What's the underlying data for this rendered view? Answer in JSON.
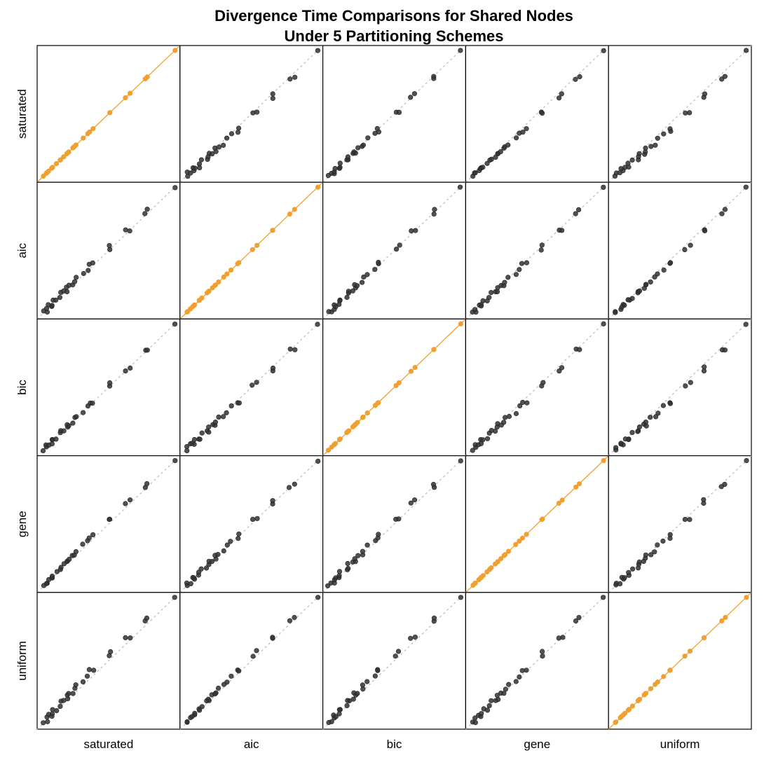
{
  "chart_data": {
    "type": "scatter",
    "title_line1": "Divergence Time Comparisons for Shared Nodes",
    "title_line2": "Under 5 Partitioning Schemes",
    "schemes": [
      "saturated",
      "aic",
      "bic",
      "gene",
      "uniform"
    ],
    "grid": false,
    "legend": "none",
    "xlim": [
      0,
      1
    ],
    "ylim": [
      0,
      1
    ],
    "reference_line": "y = x",
    "colors": {
      "off_diagonal_points": "#333333",
      "diagonal_points": "#f0a030",
      "reference_line": "#bdbdbd"
    },
    "base_ages": [
      0.01,
      0.025,
      0.04,
      0.055,
      0.06,
      0.075,
      0.09,
      0.1,
      0.13,
      0.15,
      0.16,
      0.18,
      0.195,
      0.205,
      0.22,
      0.245,
      0.265,
      0.3,
      0.34,
      0.37,
      0.38,
      0.5,
      0.52,
      0.63,
      0.65,
      0.78,
      0.8,
      1.0
    ],
    "scheme_scale": [
      1.0,
      1.05,
      1.02,
      1.08,
      1.12
    ]
  }
}
